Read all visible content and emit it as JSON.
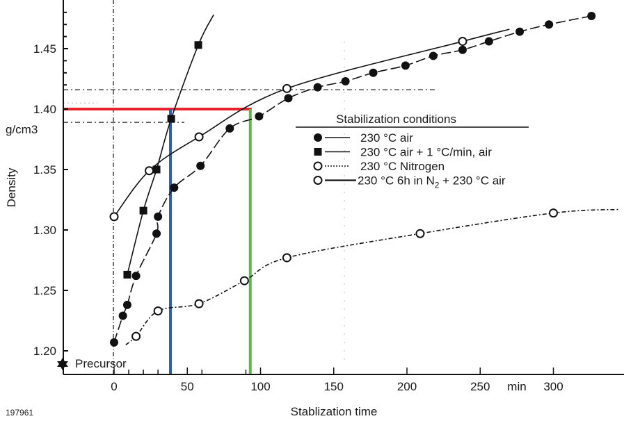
{
  "chart_data": {
    "type": "line",
    "title": "",
    "xlabel": "Stablization time",
    "x_unit": "min",
    "ylabel": "Density",
    "y_unit": "g/cm3",
    "xlim": [
      -35,
      350
    ],
    "ylim": [
      1.185,
      1.48
    ],
    "x_ticks": [
      "0",
      "50",
      "100",
      "150",
      "200",
      "250",
      "300"
    ],
    "x_tick_values": [
      0,
      50,
      100,
      150,
      200,
      250,
      300
    ],
    "y_ticks": [
      "1.20",
      "1.25",
      "1.30",
      "1.35",
      "1.40",
      "1.45"
    ],
    "y_tick_values": [
      1.2,
      1.25,
      1.3,
      1.35,
      1.4,
      1.45
    ],
    "grid": false,
    "legend": {
      "title": "Stabilization conditions",
      "placement": "center-right"
    },
    "series": [
      {
        "name": "230 °C air",
        "marker": "filled-circle",
        "line": "long-dash",
        "x": [
          0,
          6,
          9,
          15,
          29,
          30,
          41,
          59,
          79,
          99,
          119,
          139,
          158,
          177,
          199,
          218,
          238,
          256,
          277,
          297,
          326
        ],
        "y": [
          1.207,
          1.229,
          1.238,
          1.262,
          1.297,
          1.311,
          1.335,
          1.353,
          1.384,
          1.394,
          1.409,
          1.418,
          1.423,
          1.43,
          1.436,
          1.444,
          1.449,
          1.456,
          1.464,
          1.47,
          1.477
        ]
      },
      {
        "name": "230 °C air + 1 °C/min, air",
        "marker": "filled-square",
        "line": "solid",
        "x": [
          9,
          20,
          29,
          39,
          57.5
        ],
        "y": [
          1.263,
          1.316,
          1.35,
          1.392,
          1.453
        ]
      },
      {
        "name": "230 °C Nitrogen",
        "marker": "open-circle",
        "line": "dotted",
        "x": [
          15,
          30,
          58,
          89,
          118,
          209,
          300
        ],
        "y": [
          1.212,
          1.233,
          1.239,
          1.258,
          1.277,
          1.297,
          1.314
        ]
      },
      {
        "name": "230 °C 6h in N2 + 230 °C air",
        "name_main": "230 °C 6h in N",
        "name_sub": "2",
        "name_tail": " + 230 °C air",
        "marker": "open-circle",
        "line": "solid",
        "x": [
          0,
          24,
          58,
          118,
          238
        ],
        "y": [
          1.311,
          1.349,
          1.377,
          1.417,
          1.456
        ]
      }
    ],
    "annotations": {
      "precursor_label": "Precursor",
      "reference_density": 1.4,
      "reference_times": [
        38.5,
        93
      ],
      "reference_colors": {
        "horizontal": "#e8232b",
        "blue": "#2f5fa8",
        "green": "#5cb848"
      },
      "figure_id": "197961"
    }
  }
}
